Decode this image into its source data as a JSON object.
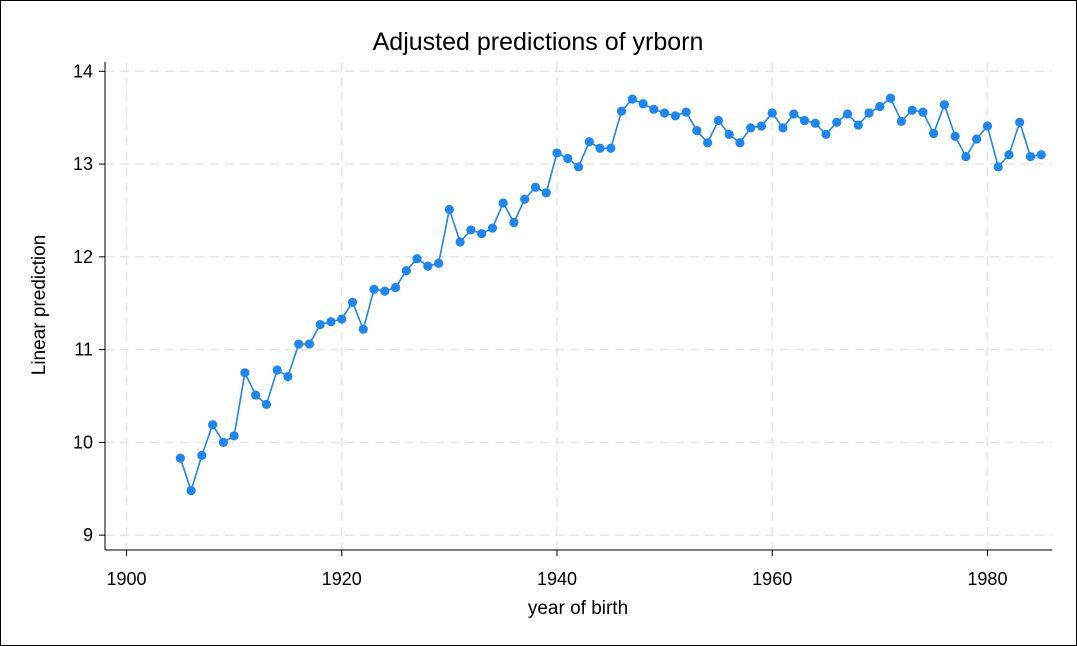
{
  "chart_data": {
    "type": "line",
    "title": "Adjusted predictions of yrborn",
    "xlabel": "year of birth",
    "ylabel": "Linear prediction",
    "xlim": [
      1898,
      1986
    ],
    "ylim": [
      8.84,
      14.1
    ],
    "xticks": [
      "1900",
      "1920",
      "1940",
      "1960",
      "1980"
    ],
    "yticks": [
      "9",
      "10",
      "11",
      "12",
      "13",
      "14"
    ],
    "grid": true,
    "marker": "circle",
    "series": [
      {
        "color": "#1f86ec",
        "x": [
          1905,
          1906,
          1907,
          1908,
          1909,
          1910,
          1911,
          1912,
          1913,
          1914,
          1915,
          1916,
          1917,
          1918,
          1919,
          1920,
          1921,
          1922,
          1923,
          1924,
          1925,
          1926,
          1927,
          1928,
          1929,
          1930,
          1931,
          1932,
          1933,
          1934,
          1935,
          1936,
          1937,
          1938,
          1939,
          1940,
          1941,
          1942,
          1943,
          1944,
          1945,
          1946,
          1947,
          1948,
          1949,
          1950,
          1951,
          1952,
          1953,
          1954,
          1955,
          1956,
          1957,
          1958,
          1959,
          1960,
          1961,
          1962,
          1963,
          1964,
          1965,
          1966,
          1967,
          1968,
          1969,
          1970,
          1971,
          1972,
          1973,
          1974,
          1975,
          1976,
          1977,
          1978,
          1979,
          1980,
          1981,
          1982,
          1983,
          1984,
          1985
        ],
        "y": [
          9.83,
          9.48,
          9.86,
          10.19,
          10.0,
          10.07,
          10.75,
          10.51,
          10.41,
          10.78,
          10.71,
          11.06,
          11.06,
          11.27,
          11.3,
          11.33,
          11.51,
          11.22,
          11.65,
          11.63,
          11.67,
          11.85,
          11.98,
          11.9,
          11.93,
          12.51,
          12.16,
          12.29,
          12.25,
          12.31,
          12.58,
          12.37,
          12.62,
          12.75,
          12.69,
          13.12,
          13.06,
          12.97,
          13.24,
          13.17,
          13.17,
          13.57,
          13.7,
          13.65,
          13.59,
          13.55,
          13.52,
          13.56,
          13.36,
          13.23,
          13.47,
          13.32,
          13.23,
          13.39,
          13.41,
          13.55,
          13.39,
          13.54,
          13.47,
          13.44,
          13.32,
          13.45,
          13.54,
          13.42,
          13.55,
          13.62,
          13.71,
          13.46,
          13.58,
          13.56,
          13.33,
          13.64,
          13.3,
          13.08,
          13.27,
          13.41,
          12.97,
          13.1,
          13.45,
          13.08,
          13.1
        ]
      }
    ]
  }
}
